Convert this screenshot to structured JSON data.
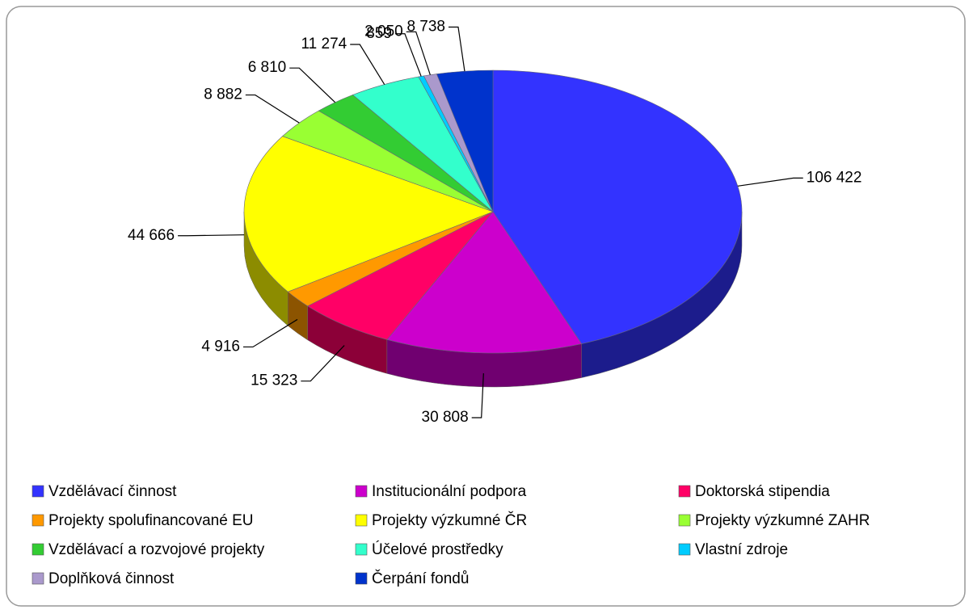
{
  "chart_data": {
    "type": "pie3d",
    "categories": [
      "Vzdělávací činnost",
      "Institucionální podpora",
      "Doktorská stipendia",
      "Projekty spolufinancované EU",
      "Projekty výzkumné ČR",
      "Projekty výzkumné ZAHR",
      "Vzdělávací a rozvojové projekty",
      "Účelové prostředky",
      "Vlastní zdroje",
      "Doplňková činnost",
      "Čerpání fondů"
    ],
    "values": [
      106422,
      30808,
      15323,
      4916,
      44666,
      8882,
      6810,
      11274,
      859,
      2050,
      8738
    ],
    "value_labels": [
      "106 422",
      "30 808",
      "15 323",
      "4 916",
      "44 666",
      "8 882",
      "6 810",
      "11 274",
      "859",
      "2 050",
      "8 738"
    ],
    "colors": [
      "#3333ff",
      "#cc00cc",
      "#ff0066",
      "#ff9900",
      "#ffff00",
      "#99ff33",
      "#33cc33",
      "#33ffcc",
      "#00ccff",
      "#aa99cc",
      "#0033cc"
    ],
    "legend": "bottom"
  }
}
